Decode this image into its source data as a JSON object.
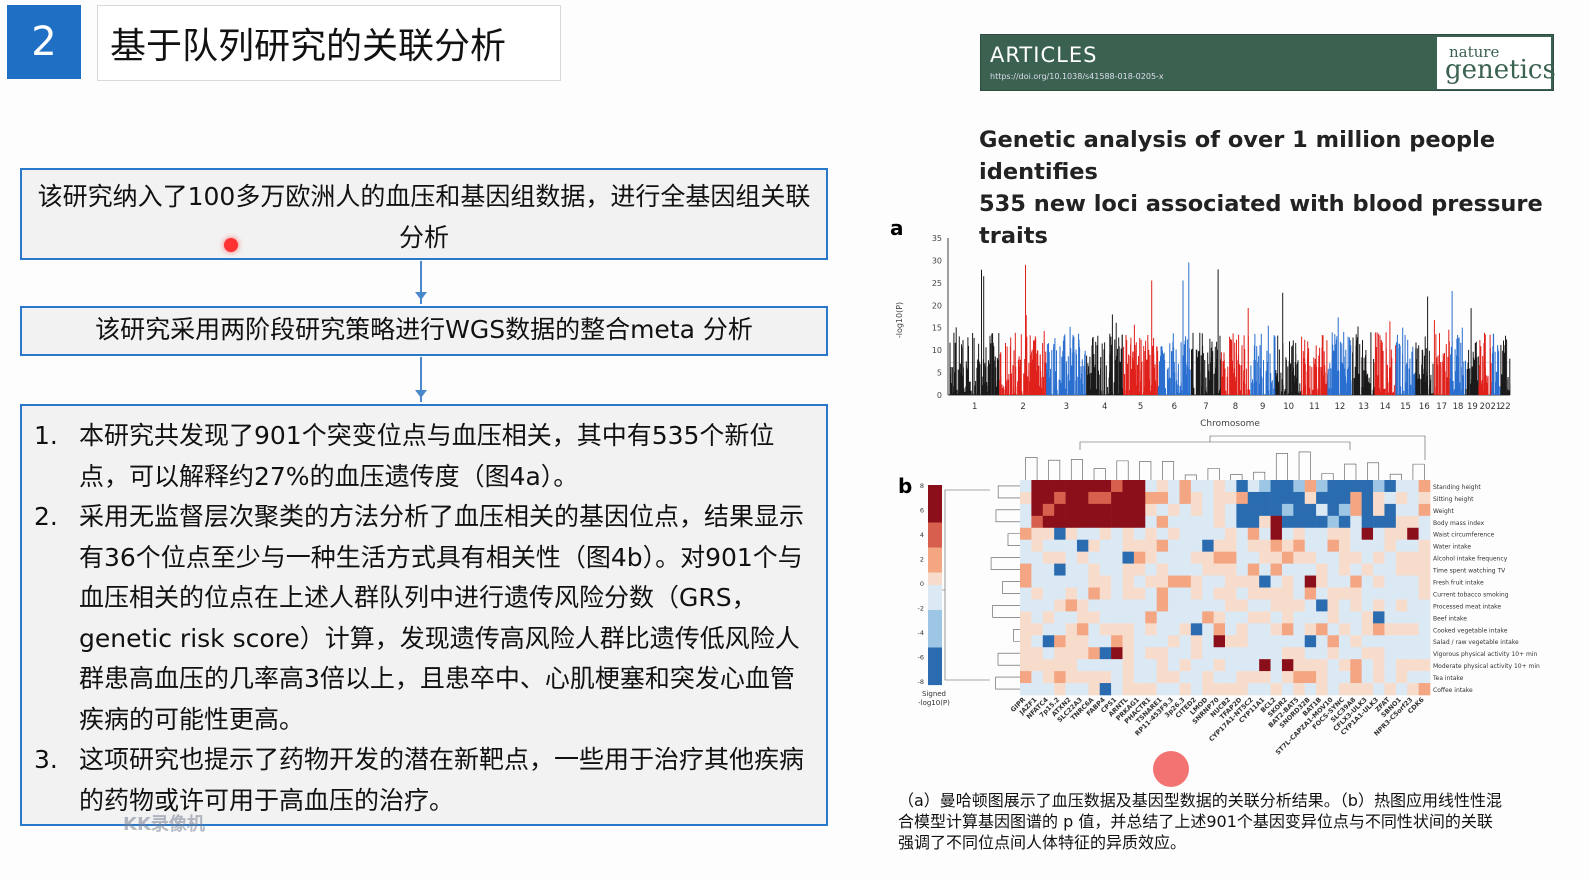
{
  "slide": {
    "number": "2",
    "title": "基于队列研究的关联分析"
  },
  "flow": {
    "box1": "该研究纳入了100多万欧洲人的血压和基因组数据，进行全基因组关联分析",
    "box2": "该研究采用两阶段研究策略进行WGS数据的整合meta 分析",
    "items": [
      {
        "n": "1.",
        "text": "本研究共发现了901个突变位点与血压相关，其中有535个新位点，可以解释约27%的血压遗传度（图4a）。"
      },
      {
        "n": "2.",
        "text": "采用无监督层次聚类的方法分析了血压相关的基因位点，结果显示有36个位点至少与一种生活方式具有相关性（图4b）。对901个与血压相关的位点在上述人群队列中进行遗传风险分数（GRS，genetic risk score）计算，发现遗传高风险人群比遗传低风险人群患高血压的几率高3倍以上，且患卒中、心肌梗塞和突发心血管疾病的可能性更高。"
      },
      {
        "n": "3.",
        "text": "这项研究也提示了药物开发的潜在新靶点，一些用于治疗其他疾病的药物或许可用于高血压的治疗。"
      }
    ]
  },
  "article": {
    "section": "ARTICLES",
    "doi": "https://doi.org/10.1038/s41588-018-0205-x",
    "journal_line1": "nature",
    "journal_line2": "genetics",
    "brand_color": "#3b6150",
    "title_line1": "Genetic analysis of over 1 million people identifies",
    "title_line2": "535 new loci associated with blood pressure traits"
  },
  "chart_data": [
    {
      "type": "scatter",
      "panel": "a",
      "xlabel": "Chromosome",
      "ylabel": "-log10(P)",
      "ylim": [
        0,
        35
      ],
      "yticks": [
        0,
        5,
        10,
        15,
        20,
        25,
        30,
        35
      ],
      "categories": [
        "1",
        "2",
        "3",
        "4",
        "5",
        "6",
        "7",
        "8",
        "9",
        "10",
        "11",
        "12",
        "13",
        "14",
        "15",
        "16",
        "17",
        "18",
        "19",
        "20",
        "21",
        "22"
      ],
      "colors": [
        "#1a1a1a",
        "#e0201b",
        "#2a6fd0"
      ]
    },
    {
      "type": "heatmap",
      "panel": "b",
      "legend_label": "Signed -log10(P)",
      "legend_ticks": [
        "8",
        "6",
        "4",
        "2",
        "0",
        "-2",
        "-4",
        "-6",
        "-8"
      ],
      "rows": [
        "Standing height",
        "Sitting height",
        "Weight",
        "Body mass index",
        "Waist circumference",
        "Water intake",
        "Alcohol intake frequency",
        "Time spent watching TV",
        "Fresh fruit intake",
        "Current tobacco smoking",
        "Processed meat intake",
        "Beef intake",
        "Cooked vegetable intake",
        "Salad / raw vegetable intake",
        "Vigorous physical activity 10+ min",
        "Moderate physical activity 10+ min",
        "Tea intake",
        "Coffee intake"
      ],
      "columns": [
        "GIPR",
        "JAZF1",
        "NFATC4",
        "7p15.2",
        "ATXN2",
        "SLC22A3",
        "TNRC6A",
        "FABP4",
        "CPS1",
        "ARNTL",
        "PRKAG1",
        "PHACTR1",
        "TSNARE1",
        "RP11-453F9.3",
        "3p26.3",
        "CITED2",
        "LMOD",
        "SNRNP70",
        "NUCB2",
        "TFAP2D",
        "CYP17A1-NT5C2",
        "CYP11A1",
        "BCL2",
        "SKOR2",
        "BAT2-BAT5",
        "SNORD32B",
        "BAT1B",
        "ST7L-CAPZA1-MOV10",
        "FOCS-SYNC",
        "SLC39A8",
        "CFLX3-ULK3",
        "CYP1A1-ULK3",
        "ZFAT",
        "SBNO1",
        "NPR3-C5orf23",
        "CDK6"
      ],
      "colors": {
        "positive": "#8b0f1a",
        "neutral": "#f3f1ef",
        "negative": "#0b2d6b"
      }
    }
  ],
  "caption": {
    "line1": "（a）曼哈顿图展示了血压数据及基因型数据的关联分析结果。（b）热图应用线性性混",
    "line2": "合模型计算基因图谱的 p 值，并总结了上述901个基因变异位点与不同性状间的关联",
    "line3": "强调了不同位点间人体特征的异质效应。"
  },
  "watermark": "KK录像机"
}
